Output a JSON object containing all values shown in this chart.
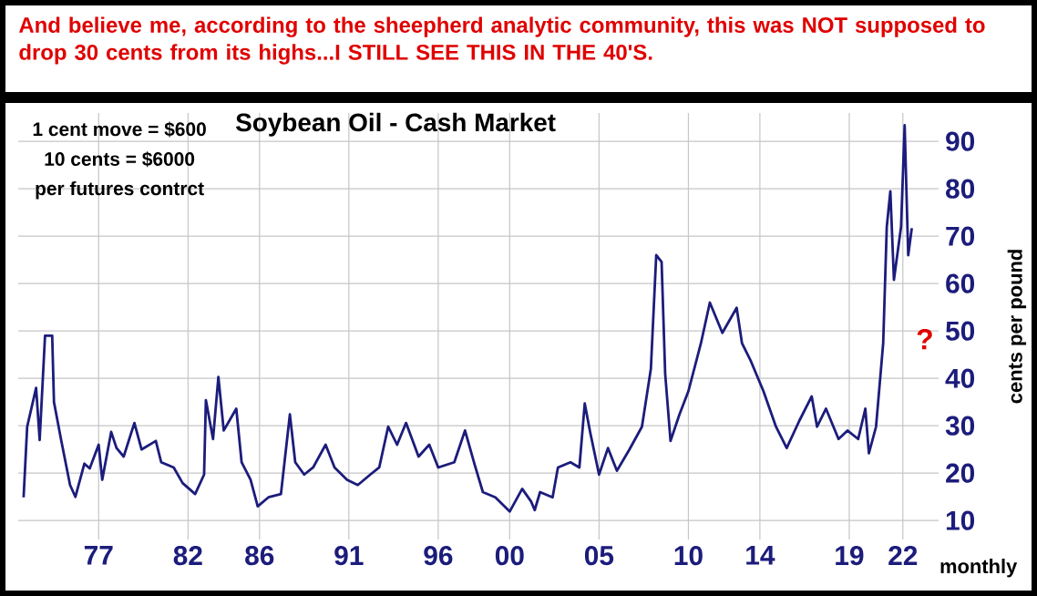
{
  "chart_data": {
    "type": "line",
    "title": "Soybean Oil - Cash Market",
    "subtitle": "And believe me, according to the sheepherd analytic community, this was NOT supposed to drop 30 cents from its highs...I STILL SEE THIS IN THE 40'S.",
    "xlabel": "monthly",
    "ylabel": "cents per pound",
    "annotations": [
      "1 cent move = $600",
      "10 cents = $6000",
      "per futures contrct",
      "?"
    ],
    "series": [
      {
        "color": "#1c1c7c",
        "x": [
          1972.8,
          1973.0,
          1973.5,
          1973.7,
          1974.0,
          1974.4,
          1974.5,
          1974.9,
          1975.4,
          1975.7,
          1976.2,
          1976.5,
          1977.0,
          1977.2,
          1977.7,
          1978.0,
          1978.4,
          1979.0,
          1979.4,
          1980.2,
          1980.5,
          1981.2,
          1981.7,
          1982.4,
          1982.9,
          1983.0,
          1983.4,
          1983.7,
          1984.0,
          1984.7,
          1985.0,
          1985.5,
          1985.9,
          1986.5,
          1987.2,
          1987.7,
          1988.0,
          1988.5,
          1989.0,
          1989.7,
          1990.2,
          1990.9,
          1991.5,
          1992.2,
          1992.7,
          1993.2,
          1993.7,
          1994.2,
          1994.9,
          1995.5,
          1996.0,
          1996.9,
          1997.5,
          1998.0,
          1998.5,
          1999.2,
          2000.0,
          2000.7,
          2001.2,
          2001.4,
          2001.7,
          2002.4,
          2002.7,
          2003.4,
          2003.9,
          2004.2,
          2004.5,
          2005.0,
          2005.5,
          2006.0,
          2006.7,
          2007.4,
          2007.9,
          2008.2,
          2008.5,
          2008.7,
          2009.0,
          2009.5,
          2010.0,
          2010.7,
          2011.2,
          2011.9,
          2012.7,
          2013.0,
          2013.5,
          2014.2,
          2014.9,
          2015.5,
          2016.2,
          2016.9,
          2017.2,
          2017.7,
          2018.4,
          2018.9,
          2019.5,
          2019.9,
          2020.1,
          2020.5,
          2020.9,
          2021.1,
          2021.3,
          2021.5,
          2021.9,
          2022.1,
          2022.3,
          2022.5
        ],
        "values": [
          14.9,
          29.8,
          38,
          27,
          49,
          49,
          35,
          27,
          17.5,
          15,
          22,
          21,
          26,
          18.6,
          28.7,
          25.3,
          23.5,
          30.6,
          25,
          26.8,
          22.3,
          21.2,
          17.9,
          15.6,
          19.7,
          35.4,
          27.2,
          40.3,
          29,
          33.6,
          22.3,
          18.6,
          13,
          14.9,
          15.6,
          32.4,
          22.3,
          19.7,
          21.2,
          26,
          21.2,
          18.6,
          17.5,
          19.7,
          21.2,
          29.8,
          26,
          30.6,
          23.5,
          26,
          21.2,
          22.3,
          29,
          22.3,
          16,
          14.9,
          11.9,
          16.7,
          14,
          12.2,
          16,
          14.9,
          21.2,
          22.3,
          21.2,
          34.7,
          28.7,
          19.7,
          25.3,
          20.5,
          25,
          29.8,
          42,
          66,
          64.6,
          41,
          26.8,
          32.4,
          37.3,
          47.4,
          56,
          49.6,
          54.9,
          47.4,
          43.6,
          37.3,
          29.8,
          25.3,
          31,
          36.2,
          29.8,
          33.6,
          27.2,
          29,
          27.2,
          33.6,
          24.2,
          29.8,
          47.4,
          72,
          79.5,
          60.8,
          72,
          93.4,
          66,
          71.7
        ]
      }
    ],
    "xlim": [
      1972.5,
      2024
    ],
    "ylim": [
      6,
      96
    ],
    "xticks": [
      {
        "value": 1977,
        "label": "77"
      },
      {
        "value": 1982,
        "label": "82"
      },
      {
        "value": 1986,
        "label": "86"
      },
      {
        "value": 1991,
        "label": "91"
      },
      {
        "value": 1996,
        "label": "96"
      },
      {
        "value": 2000,
        "label": "00"
      },
      {
        "value": 2005,
        "label": "05"
      },
      {
        "value": 2010,
        "label": "10"
      },
      {
        "value": 2014,
        "label": "14"
      },
      {
        "value": 2019,
        "label": "19"
      },
      {
        "value": 2022,
        "label": "22"
      }
    ],
    "yticks": [
      10,
      20,
      30,
      40,
      50,
      60,
      70,
      80,
      90
    ],
    "grid": true,
    "line_style": "solid"
  }
}
